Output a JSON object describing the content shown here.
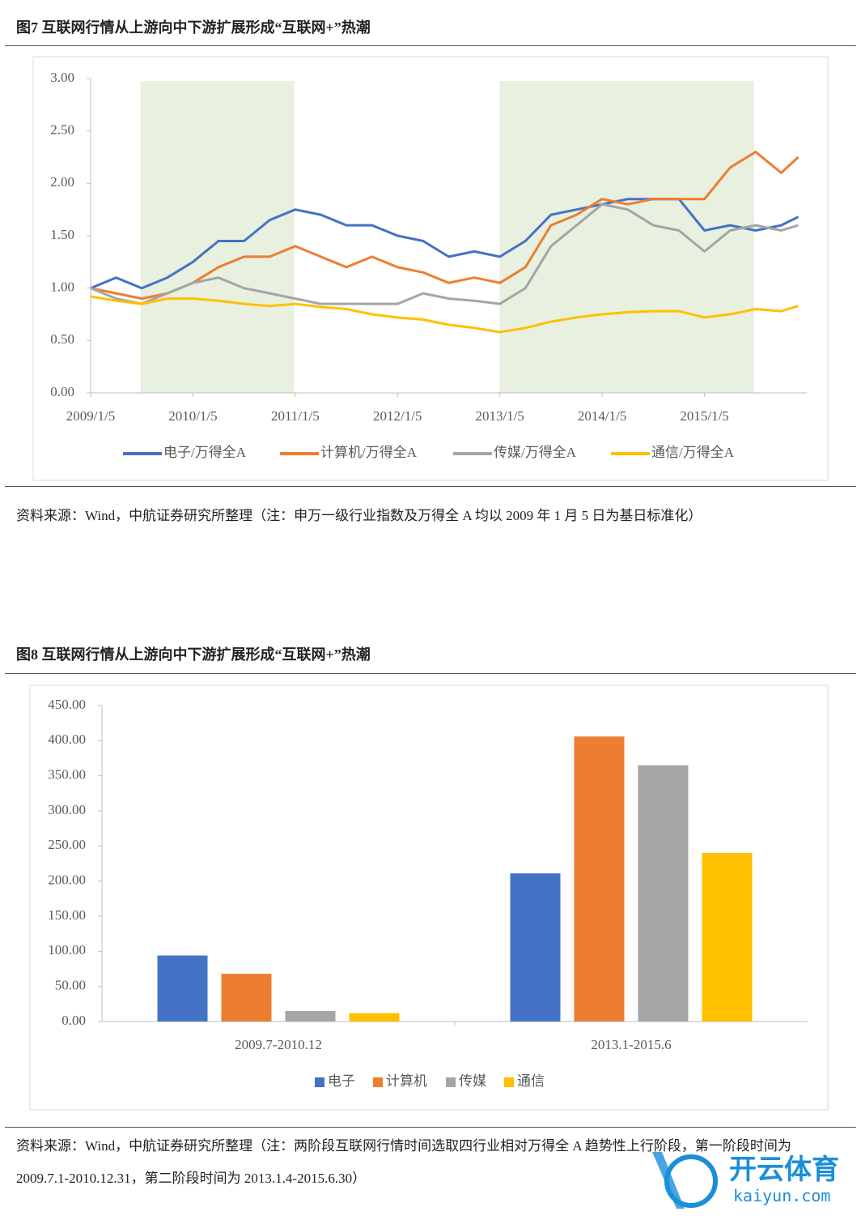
{
  "chart_data": [
    {
      "type": "line",
      "title": "图7  互联网行情从上游向中下游扩展形成“互联网+”热潮",
      "source_note": "资料来源：Wind，中航证券研究所整理（注：申万一级行业指数及万得全 A 均以 2009 年 1 月 5 日为基日标准化）",
      "x": [
        "2009/1/5",
        "2009/4/5",
        "2009/7/5",
        "2009/10/5",
        "2010/1/5",
        "2010/4/5",
        "2010/7/5",
        "2010/10/5",
        "2011/1/5",
        "2011/4/5",
        "2011/7/5",
        "2011/10/5",
        "2012/1/5",
        "2012/4/5",
        "2012/7/5",
        "2012/10/5",
        "2013/1/5",
        "2013/4/5",
        "2013/7/5",
        "2013/10/5",
        "2014/1/5",
        "2014/4/5",
        "2014/7/5",
        "2014/10/5",
        "2015/1/5",
        "2015/4/5",
        "2015/7/5",
        "2015/10/5",
        "2015/12/5"
      ],
      "series": [
        {
          "name": "电子/万得全A",
          "color": "#4472c4",
          "values": [
            1.0,
            1.1,
            1.0,
            1.1,
            1.25,
            1.45,
            1.45,
            1.65,
            1.75,
            1.7,
            1.6,
            1.6,
            1.5,
            1.45,
            1.3,
            1.35,
            1.3,
            1.45,
            1.7,
            1.75,
            1.8,
            1.85,
            1.85,
            1.85,
            1.55,
            1.6,
            1.55,
            1.6,
            1.68
          ]
        },
        {
          "name": "计算机/万得全A",
          "color": "#ed7d31",
          "values": [
            1.0,
            0.95,
            0.9,
            0.95,
            1.05,
            1.2,
            1.3,
            1.3,
            1.4,
            1.3,
            1.2,
            1.3,
            1.2,
            1.15,
            1.05,
            1.1,
            1.05,
            1.2,
            1.6,
            1.7,
            1.85,
            1.8,
            1.85,
            1.85,
            1.85,
            2.15,
            2.3,
            2.1,
            2.25
          ]
        },
        {
          "name": "传媒/万得全A",
          "color": "#a5a5a5",
          "values": [
            1.0,
            0.9,
            0.85,
            0.95,
            1.05,
            1.1,
            1.0,
            0.95,
            0.9,
            0.85,
            0.85,
            0.85,
            0.85,
            0.95,
            0.9,
            0.88,
            0.85,
            1.0,
            1.4,
            1.6,
            1.8,
            1.75,
            1.6,
            1.55,
            1.35,
            1.55,
            1.6,
            1.55,
            1.6
          ]
        },
        {
          "name": "通信/万得全A",
          "color": "#ffc000",
          "values": [
            0.92,
            0.88,
            0.85,
            0.9,
            0.9,
            0.88,
            0.85,
            0.83,
            0.85,
            0.82,
            0.8,
            0.75,
            0.72,
            0.7,
            0.65,
            0.62,
            0.58,
            0.62,
            0.68,
            0.72,
            0.75,
            0.77,
            0.78,
            0.78,
            0.72,
            0.75,
            0.8,
            0.78,
            0.83
          ]
        }
      ],
      "xlim": [
        "2009/1/5",
        "2016/1/5"
      ],
      "xticks": [
        "2009/1/5",
        "2010/1/5",
        "2011/1/5",
        "2012/1/5",
        "2013/1/5",
        "2014/1/5",
        "2015/1/5"
      ],
      "ylim": [
        0,
        3
      ],
      "yticks": [
        {
          "value": 0,
          "label": "0.00"
        },
        {
          "value": 0.5,
          "label": "0.50"
        },
        {
          "value": 1,
          "label": "1.00"
        },
        {
          "value": 1.5,
          "label": "1.50"
        },
        {
          "value": 2,
          "label": "2.00"
        },
        {
          "value": 2.5,
          "label": "2.50"
        },
        {
          "value": 3,
          "label": "3.00"
        }
      ],
      "highlight_ranges": [
        [
          "2009/7/1",
          "2010/12/31"
        ],
        [
          "2013/1/4",
          "2015/6/30"
        ]
      ],
      "highlight_color": "#e8f0e0",
      "legend": "bottom"
    },
    {
      "type": "bar",
      "title": "图8  互联网行情从上游向中下游扩展形成“互联网+”热潮",
      "source_note": "资料来源：Wind，中航证券研究所整理（注：两阶段互联网行情时间选取四行业相对万得全 A 趋势性上行阶段，第一阶段时间为 2009.7.1-2010.12.31，第二阶段时间为 2013.1.4-2015.6.30）",
      "categories": [
        "2009.7-2010.12",
        "2013.1-2015.6"
      ],
      "series": [
        {
          "name": "电子",
          "color": "#4472c4",
          "values": [
            94,
            211
          ]
        },
        {
          "name": "计算机",
          "color": "#ed7d31",
          "values": [
            68,
            406
          ]
        },
        {
          "name": "传媒",
          "color": "#a5a5a5",
          "values": [
            15,
            365
          ]
        },
        {
          "name": "通信",
          "color": "#ffc000",
          "values": [
            12,
            240
          ]
        }
      ],
      "ylim": [
        0,
        450
      ],
      "yticks": [
        {
          "value": 0,
          "label": "0.00"
        },
        {
          "value": 50,
          "label": "50.00"
        },
        {
          "value": 100,
          "label": "100.00"
        },
        {
          "value": 150,
          "label": "150.00"
        },
        {
          "value": 200,
          "label": "200.00"
        },
        {
          "value": 250,
          "label": "250.00"
        },
        {
          "value": 300,
          "label": "300.00"
        },
        {
          "value": 350,
          "label": "350.00"
        },
        {
          "value": 400,
          "label": "400.00"
        },
        {
          "value": 450,
          "label": "450.00"
        }
      ],
      "legend": "bottom"
    }
  ],
  "watermark": {
    "text": "开云体育",
    "url": "kaiyun.com"
  }
}
